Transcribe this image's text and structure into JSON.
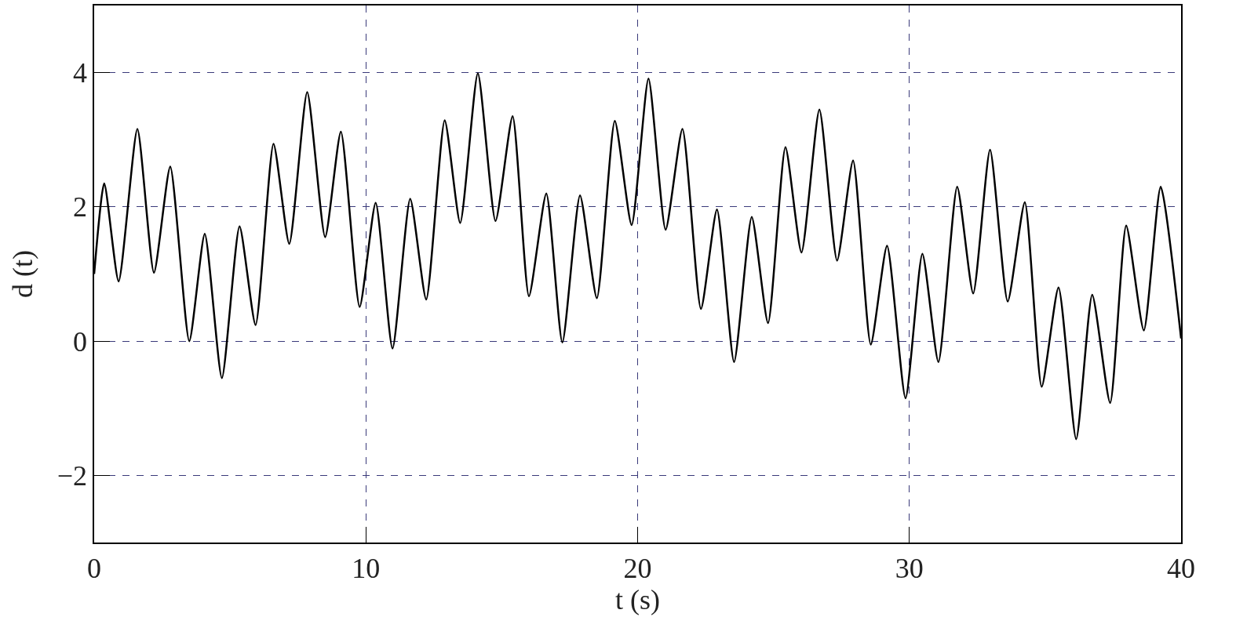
{
  "chart_data": {
    "type": "line",
    "xlabel": "t (s)",
    "ylabel": "d (t)",
    "x": [
      0,
      0.37,
      0.9,
      1.59,
      2.2,
      2.8,
      3.5,
      4.07,
      4.7,
      5.35,
      5.94,
      6.6,
      7.18,
      7.84,
      8.5,
      9.08,
      9.77,
      10.36,
      10.98,
      11.63,
      12.22,
      12.9,
      13.47,
      14.12,
      14.77,
      15.4,
      16.0,
      16.64,
      17.23,
      17.88,
      18.5,
      19.16,
      19.78,
      20.4,
      21.03,
      21.65,
      22.33,
      22.92,
      23.55,
      24.2,
      24.8,
      25.44,
      26.03,
      26.69,
      27.34,
      27.93,
      28.58,
      29.18,
      29.86,
      30.48,
      31.07,
      31.76,
      32.35,
      32.97,
      33.62,
      34.25,
      34.87,
      35.49,
      36.14,
      36.73,
      37.39,
      37.98,
      38.63,
      39.25,
      40
    ],
    "series": [
      {
        "color": "#000000",
        "values": [
          1.0,
          2.35,
          0.89,
          3.16,
          1.02,
          2.6,
          0.0,
          1.6,
          -0.55,
          1.71,
          0.24,
          2.94,
          1.45,
          3.71,
          1.55,
          3.12,
          0.51,
          2.06,
          -0.11,
          2.12,
          0.62,
          3.29,
          1.76,
          3.99,
          1.79,
          3.35,
          0.67,
          2.2,
          -0.02,
          2.17,
          0.64,
          3.28,
          1.73,
          3.91,
          1.66,
          3.16,
          0.48,
          1.96,
          -0.31,
          1.85,
          0.27,
          2.89,
          1.32,
          3.45,
          1.2,
          2.69,
          -0.05,
          1.42,
          -0.85,
          1.3,
          -0.31,
          2.3,
          0.71,
          2.85,
          0.59,
          2.07,
          -0.68,
          0.8,
          -1.46,
          0.69,
          -0.92,
          1.72,
          0.16,
          2.3,
          0.04
        ]
      }
    ],
    "xlim": [
      0,
      40
    ],
    "xticks": [
      0,
      10,
      20,
      30,
      40
    ],
    "ylim": [
      -3,
      5
    ],
    "yticks": [
      {
        "value": -2,
        "label": "−2"
      },
      0,
      2,
      4
    ],
    "grid": true,
    "marker": "none",
    "line_style": "solid"
  }
}
